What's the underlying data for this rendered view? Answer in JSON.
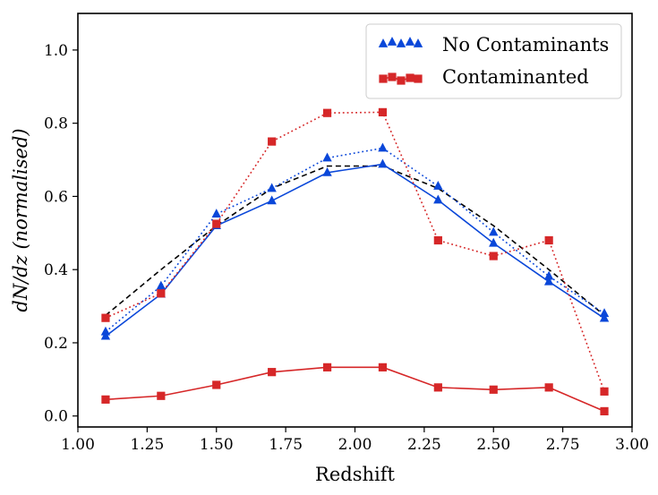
{
  "chart_data": {
    "type": "line",
    "title": "",
    "xlabel": "Redshift",
    "ylabel": "dN/dz (normalised)",
    "xlim": [
      1.0,
      3.0
    ],
    "ylim": [
      -0.03,
      1.1
    ],
    "xticks": [
      1.0,
      1.25,
      1.5,
      1.75,
      2.0,
      2.25,
      2.5,
      2.75,
      3.0
    ],
    "xtick_labels": [
      "1.00",
      "1.25",
      "1.50",
      "1.75",
      "2.00",
      "2.25",
      "2.50",
      "2.75",
      "3.00"
    ],
    "yticks": [
      0.0,
      0.2,
      0.4,
      0.6,
      0.8,
      1.0
    ],
    "ytick_labels": [
      "0.0",
      "0.2",
      "0.4",
      "0.6",
      "0.8",
      "1.0"
    ],
    "grid": false,
    "legend_position": "top-right",
    "x": [
      1.1,
      1.3,
      1.5,
      1.7,
      1.9,
      2.1,
      2.3,
      2.5,
      2.7,
      2.9
    ],
    "series": [
      {
        "name": "",
        "color": "#000000",
        "line": "dashed",
        "marker": "none",
        "values": [
          0.275,
          0.4,
          0.52,
          0.622,
          0.683,
          0.683,
          0.622,
          0.52,
          0.4,
          0.275
        ]
      },
      {
        "name": "No Contaminants",
        "color": "#0a47d9",
        "line": "solid",
        "marker": "triangle",
        "values": [
          0.218,
          0.333,
          0.52,
          0.588,
          0.665,
          0.688,
          0.59,
          0.472,
          0.367,
          0.267
        ]
      },
      {
        "name": "",
        "color": "#0a47d9",
        "line": "dotted",
        "marker": "triangle",
        "values": [
          0.23,
          0.355,
          0.552,
          0.622,
          0.705,
          0.732,
          0.628,
          0.502,
          0.382,
          0.28
        ]
      },
      {
        "name": "Contaminanted",
        "color": "#d62728",
        "line": "solid",
        "marker": "square",
        "values": [
          0.045,
          0.055,
          0.085,
          0.12,
          0.133,
          0.133,
          0.078,
          0.072,
          0.078,
          0.013
        ]
      },
      {
        "name": "",
        "color": "#d62728",
        "line": "dotted",
        "marker": "square",
        "values": [
          0.268,
          0.335,
          0.525,
          0.75,
          0.828,
          0.83,
          0.48,
          0.437,
          0.48,
          0.067
        ]
      }
    ],
    "legend": [
      {
        "label": "No Contaminants",
        "color": "#0a47d9",
        "marker": "triangle"
      },
      {
        "label": "Contaminanted",
        "color": "#d62728",
        "marker": "square"
      }
    ]
  }
}
